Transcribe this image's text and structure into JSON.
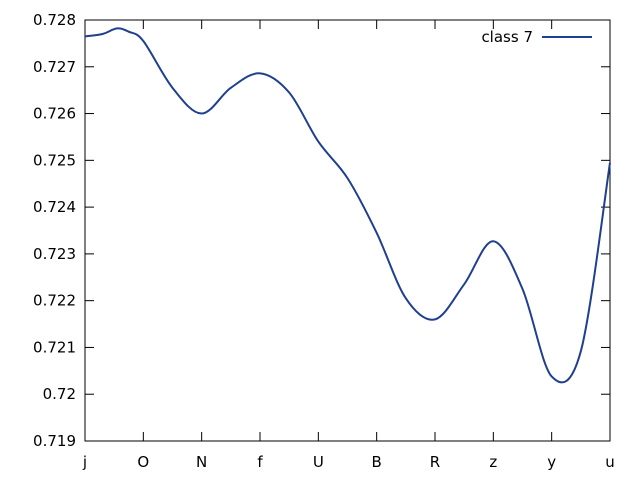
{
  "chart_data": {
    "type": "line",
    "title": "",
    "xlabel": "",
    "ylabel": "",
    "categories": [
      "j",
      "O",
      "N",
      "f",
      "U",
      "B",
      "R",
      "z",
      "y",
      "u"
    ],
    "ylim": [
      0.719,
      0.728
    ],
    "yticks": [
      0.719,
      0.72,
      0.721,
      0.722,
      0.723,
      0.724,
      0.725,
      0.726,
      0.727,
      0.728
    ],
    "ytick_labels": [
      "0.719",
      "0.72",
      "0.721",
      "0.722",
      "0.723",
      "0.724",
      "0.725",
      "0.726",
      "0.727",
      "0.728"
    ],
    "grid": false,
    "legend_position": "top-right",
    "series": [
      {
        "name": "class 7",
        "color": "#1f3f8f",
        "smooth": true,
        "points": [
          [
            0,
            0.72765
          ],
          [
            0.3,
            0.7277
          ],
          [
            0.55,
            0.72782
          ],
          [
            0.75,
            0.72775
          ],
          [
            1.0,
            0.72755
          ],
          [
            1.5,
            0.72655
          ],
          [
            2.0,
            0.726
          ],
          [
            2.5,
            0.72655
          ],
          [
            3.0,
            0.72686
          ],
          [
            3.5,
            0.72645
          ],
          [
            4.0,
            0.7254
          ],
          [
            4.5,
            0.72462
          ],
          [
            5.0,
            0.72345
          ],
          [
            5.5,
            0.72205
          ],
          [
            6.0,
            0.7216
          ],
          [
            6.5,
            0.72235
          ],
          [
            7.0,
            0.72327
          ],
          [
            7.5,
            0.72225
          ],
          [
            8.0,
            0.72038
          ],
          [
            8.5,
            0.72092
          ],
          [
            9.0,
            0.72495
          ]
        ]
      }
    ]
  }
}
